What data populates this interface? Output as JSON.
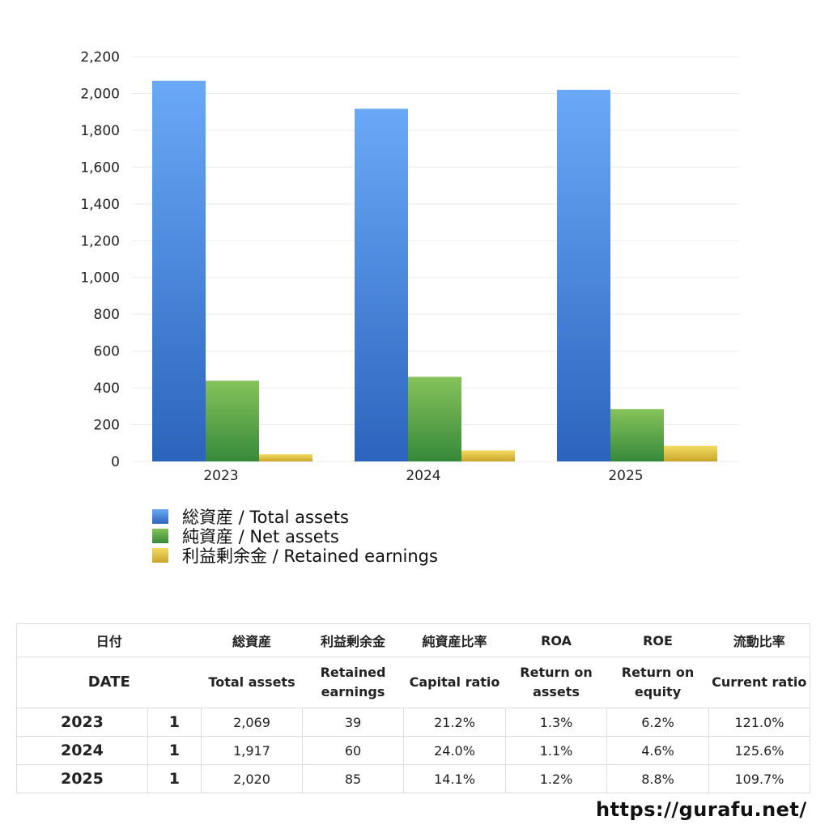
{
  "chart_data": {
    "type": "bar",
    "categories": [
      "2023",
      "2024",
      "2025"
    ],
    "series": [
      {
        "name": "総資産 / Total assets",
        "values": [
          2069,
          1917,
          2020
        ],
        "color": "#3f7fdc"
      },
      {
        "name": "純資産 / Net assets",
        "values": [
          439,
          460,
          285
        ],
        "color": "#5aa53c"
      },
      {
        "name": "利益剰余金 / Retained earnings",
        "values": [
          39,
          60,
          85
        ],
        "color": "#e2c23a"
      }
    ],
    "ylim": [
      0,
      2200
    ],
    "yticks": [
      "0",
      "200",
      "400",
      "600",
      "800",
      "1,000",
      "1,200",
      "1,400",
      "1,600",
      "1,800",
      "2,000",
      "2,200"
    ],
    "grid": true,
    "legend": "bottom"
  },
  "table": {
    "headers_jp": [
      "日付",
      "総資産",
      "利益剰余金",
      "純資産比率",
      "ROA",
      "ROE",
      "流動比率"
    ],
    "headers_en": {
      "date": "DATE",
      "total_assets": "Total assets",
      "retained_1": "Retained",
      "retained_2": "earnings",
      "capital": "Capital ratio",
      "roa_1": "Return on",
      "roa_2": "assets",
      "roe_1": "Return on",
      "roe_2": "equity",
      "current": "Current ratio"
    },
    "rows": [
      {
        "year": "2023",
        "month": "1",
        "total_assets": "2,069",
        "retained": "39",
        "capital": "21.2%",
        "roa": "1.3%",
        "roe": "6.2%",
        "current": "121.0%"
      },
      {
        "year": "2024",
        "month": "1",
        "total_assets": "1,917",
        "retained": "60",
        "capital": "24.0%",
        "roa": "1.1%",
        "roe": "4.6%",
        "current": "125.6%"
      },
      {
        "year": "2025",
        "month": "1",
        "total_assets": "2,020",
        "retained": "85",
        "capital": "14.1%",
        "roa": "1.2%",
        "roe": "8.8%",
        "current": "109.7%"
      }
    ]
  },
  "site": "https://gurafu.net/"
}
